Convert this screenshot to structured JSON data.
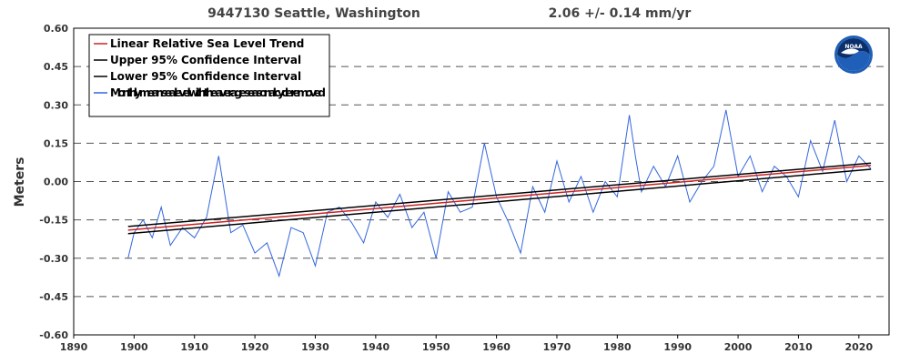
{
  "header": {
    "station": "9447130 Seattle, Washington",
    "rate": "2.06 +/-  0.14 mm/yr"
  },
  "colors": {
    "trend": "#cc2222",
    "ci": "#000000",
    "monthly": "#3366dd",
    "grid": "#555555",
    "noaa_blue": "#1f5fb8",
    "noaa_navy": "#0b2f6b"
  },
  "logo": {
    "text": "NOAA",
    "icon": "noaa-logo"
  },
  "chart_data": {
    "type": "line",
    "title": "9447130 Seattle, Washington",
    "subtitle": "2.06 +/-  0.14 mm/yr",
    "xlabel": "",
    "ylabel": "Meters",
    "xlim": [
      1890,
      2025
    ],
    "ylim": [
      -0.6,
      0.6
    ],
    "grid": true,
    "legend_position": "top-left",
    "xticks": [
      "1890",
      "1900",
      "1910",
      "1920",
      "1930",
      "1940",
      "1950",
      "1960",
      "1970",
      "1980",
      "1990",
      "2000",
      "2010",
      "2020"
    ],
    "yticks": [
      "0.60",
      "0.45",
      "0.30",
      "0.15",
      "0.00",
      "-0.15",
      "-0.30",
      "-0.45",
      "-0.60"
    ],
    "series": [
      {
        "name": "Linear Relative Sea Level Trend",
        "x": [
          1899.0,
          2022.0
        ],
        "y": [
          -0.19,
          0.063
        ]
      },
      {
        "name": "Upper 95% Confidence Interval",
        "x": [
          1899.0,
          2022.0
        ],
        "y": [
          -0.176,
          0.072
        ]
      },
      {
        "name": "Lower 95% Confidence Interval",
        "x": [
          1899.0,
          2022.0
        ],
        "y": [
          -0.204,
          0.048
        ]
      },
      {
        "name": "Monthly mean sea level with the average seasonal cycle removed",
        "x": [
          1899.0,
          1900.0,
          1901.5,
          1903.0,
          1904.5,
          1906.0,
          1908.0,
          1910.0,
          1912.0,
          1914.0,
          1916.0,
          1918.0,
          1920.0,
          1922.0,
          1924.0,
          1926.0,
          1928.0,
          1930.0,
          1932.0,
          1934.0,
          1936.0,
          1938.0,
          1940.0,
          1942.0,
          1944.0,
          1946.0,
          1948.0,
          1950.0,
          1952.0,
          1954.0,
          1956.0,
          1958.0,
          1960.0,
          1962.0,
          1964.0,
          1966.0,
          1968.0,
          1970.0,
          1972.0,
          1974.0,
          1976.0,
          1978.0,
          1980.0,
          1982.0,
          1983.0,
          1984.0,
          1986.0,
          1988.0,
          1990.0,
          1992.0,
          1994.0,
          1996.0,
          1998.0,
          2000.0,
          2002.0,
          2004.0,
          2006.0,
          2008.0,
          2010.0,
          2012.0,
          2014.0,
          2016.0,
          2018.0,
          2020.0,
          2022.0
        ],
        "y": [
          -0.3,
          -0.2,
          -0.15,
          -0.22,
          -0.1,
          -0.25,
          -0.18,
          -0.22,
          -0.14,
          0.1,
          -0.2,
          -0.17,
          -0.28,
          -0.24,
          -0.37,
          -0.18,
          -0.2,
          -0.33,
          -0.12,
          -0.1,
          -0.16,
          -0.24,
          -0.08,
          -0.14,
          -0.05,
          -0.18,
          -0.12,
          -0.3,
          -0.04,
          -0.12,
          -0.1,
          0.15,
          -0.06,
          -0.16,
          -0.28,
          -0.02,
          -0.12,
          0.08,
          -0.08,
          0.02,
          -0.12,
          0.0,
          -0.06,
          0.26,
          0.1,
          -0.04,
          0.06,
          -0.02,
          0.1,
          -0.08,
          0.0,
          0.06,
          0.28,
          0.02,
          0.1,
          -0.04,
          0.06,
          0.02,
          -0.06,
          0.16,
          0.04,
          0.24,
          0.0,
          0.1,
          0.05
        ]
      }
    ]
  }
}
